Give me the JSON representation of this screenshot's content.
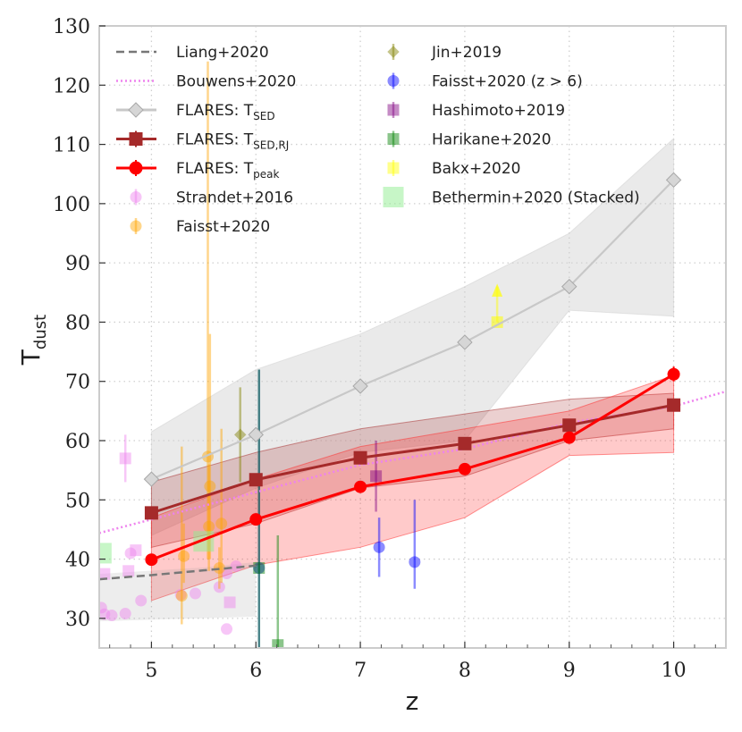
{
  "chart_data": {
    "type": "line",
    "xlabel": "z",
    "ylabel": "T",
    "ylabel_sub": "dust",
    "xlim": [
      4.5,
      10.5
    ],
    "ylim": [
      25,
      130
    ],
    "xticks": [
      5,
      6,
      7,
      8,
      9,
      10
    ],
    "yticks": [
      30,
      40,
      50,
      60,
      70,
      80,
      90,
      100,
      110,
      120,
      130
    ],
    "grid": true,
    "legend_placement": "top-left",
    "colors": {
      "liang": "#777777",
      "bouwens": "#ee82ee",
      "tsed": "#c8c8c8",
      "tsedrj": "#a52a2a",
      "tpeak": "#ff0000",
      "strandet": "#ee82ee",
      "faisst": "#ffa500",
      "jin": "#808000",
      "faisst_hz": "#0000ff",
      "hashimoto": "#800080",
      "harikane": "#008000",
      "bakx": "#ffff00",
      "bethermin": "#90ee90"
    },
    "series": [
      {
        "key": "liang",
        "name": "Liang+2020",
        "style": "dashed",
        "x": [
          4.5,
          5.0,
          5.5,
          6.0
        ],
        "y": [
          36.6,
          37.3,
          38.1,
          38.9
        ]
      },
      {
        "key": "bouwens",
        "name": "Bouwens+2020",
        "style": "dotted",
        "x": [
          4.5,
          5.0,
          6.0,
          7.0,
          8.0,
          9.0,
          10.0,
          10.5
        ],
        "y": [
          44.4,
          46.7,
          51.3,
          55.9,
          58.6,
          63.0,
          65.8,
          68.3
        ]
      },
      {
        "key": "tsed",
        "name": "FLARES: T",
        "sub": "SED",
        "marker": "diamond",
        "x": [
          5,
          6,
          7,
          8,
          9,
          10
        ],
        "y": [
          53.5,
          61,
          69.2,
          76.6,
          86,
          104
        ],
        "band_low": [
          44,
          52,
          58,
          60,
          82,
          81
        ],
        "band_high": [
          61.5,
          72,
          78,
          86,
          95,
          111
        ]
      },
      {
        "key": "tsedrj",
        "name": "FLARES: T",
        "sub": "SED,RJ",
        "marker": "square",
        "x": [
          5,
          6,
          7,
          8,
          9,
          10
        ],
        "y": [
          47.8,
          53.4,
          57.1,
          59.5,
          62.6,
          66
        ],
        "band_low": [
          42,
          46,
          52,
          54,
          60,
          62
        ],
        "band_high": [
          53,
          58,
          62,
          64.5,
          67,
          68
        ]
      },
      {
        "key": "tpeak",
        "name": "FLARES: T",
        "sub": "peak",
        "marker": "circle",
        "x": [
          5,
          6,
          7,
          8,
          9,
          10
        ],
        "y": [
          39.9,
          46.7,
          52.2,
          55.2,
          60.5,
          71.2
        ],
        "band_low": [
          33,
          39,
          42,
          47,
          57.5,
          58
        ],
        "band_high": [
          47,
          53.5,
          59,
          62,
          65,
          71
        ]
      }
    ],
    "observations": [
      {
        "key": "strandet",
        "name": "Strandet+2016",
        "marker": "circle",
        "points": [
          [
            4.52,
            31.8
          ],
          [
            4.55,
            30.7
          ],
          [
            4.62,
            30.5
          ],
          [
            4.75,
            30.8
          ],
          [
            4.8,
            41.0
          ],
          [
            4.9,
            33.0
          ],
          [
            5.28,
            34.0
          ],
          [
            5.42,
            34.2
          ],
          [
            5.65,
            35.3
          ],
          [
            5.72,
            28.2
          ],
          [
            5.72,
            37.6
          ],
          [
            5.81,
            38.8
          ]
        ]
      },
      {
        "key": "faisst",
        "name": "Faisst+2020",
        "marker": "circle",
        "points": [
          [
            5.29,
            33.8,
            29.0,
            59.0
          ],
          [
            5.31,
            40.5,
            36.0,
            46.0
          ],
          [
            5.54,
            57.3,
            40.0,
            124.0
          ],
          [
            5.56,
            52.3,
            40.0,
            78.0
          ],
          [
            5.55,
            45.5,
            38.0,
            56.0
          ],
          [
            5.67,
            46.0,
            36.0,
            62.0
          ],
          [
            5.65,
            38.5,
            35.0,
            42.0
          ]
        ]
      },
      {
        "key": "jin",
        "name": "Jin+2019",
        "marker": "diamond",
        "points": [
          [
            5.85,
            61.0,
            53.0,
            69.0
          ]
        ]
      },
      {
        "key": "faisst_hz",
        "name": "Faisst+2020 (z > 6)",
        "marker": "circle",
        "points": [
          [
            6.03,
            38.5,
            25.0,
            72.0
          ],
          [
            7.18,
            42.0,
            37.0,
            47.0
          ],
          [
            7.52,
            39.5,
            35.0,
            50.0
          ]
        ]
      },
      {
        "key": "hashimoto",
        "name": "Hashimoto+2019",
        "marker": "square",
        "points": [
          [
            7.15,
            54.0,
            48.0,
            60.0
          ]
        ]
      },
      {
        "key": "harikane",
        "name": "Harikane+2020",
        "marker": "square",
        "points": [
          [
            6.03,
            38.5,
            25.0,
            72.0
          ],
          [
            6.21,
            25.5,
            25.0,
            44.0
          ]
        ]
      },
      {
        "key": "bakx",
        "name": "Bakx+2020",
        "marker": "square",
        "points": [
          [
            8.31,
            80.0,
            80.0,
            86.0
          ]
        ]
      },
      {
        "key": "bethermin",
        "name": "Bethermin+2020 (Stacked)",
        "marker": "bigsquare",
        "points": [
          [
            4.52,
            41.0
          ],
          [
            5.5,
            43.0
          ]
        ]
      }
    ],
    "strandet_squares": [
      [
        4.75,
        57.0,
        53.0,
        61.0
      ],
      [
        4.55,
        37.5
      ],
      [
        4.78,
        38.0
      ],
      [
        4.85,
        41.5
      ],
      [
        5.75,
        32.7
      ]
    ]
  }
}
